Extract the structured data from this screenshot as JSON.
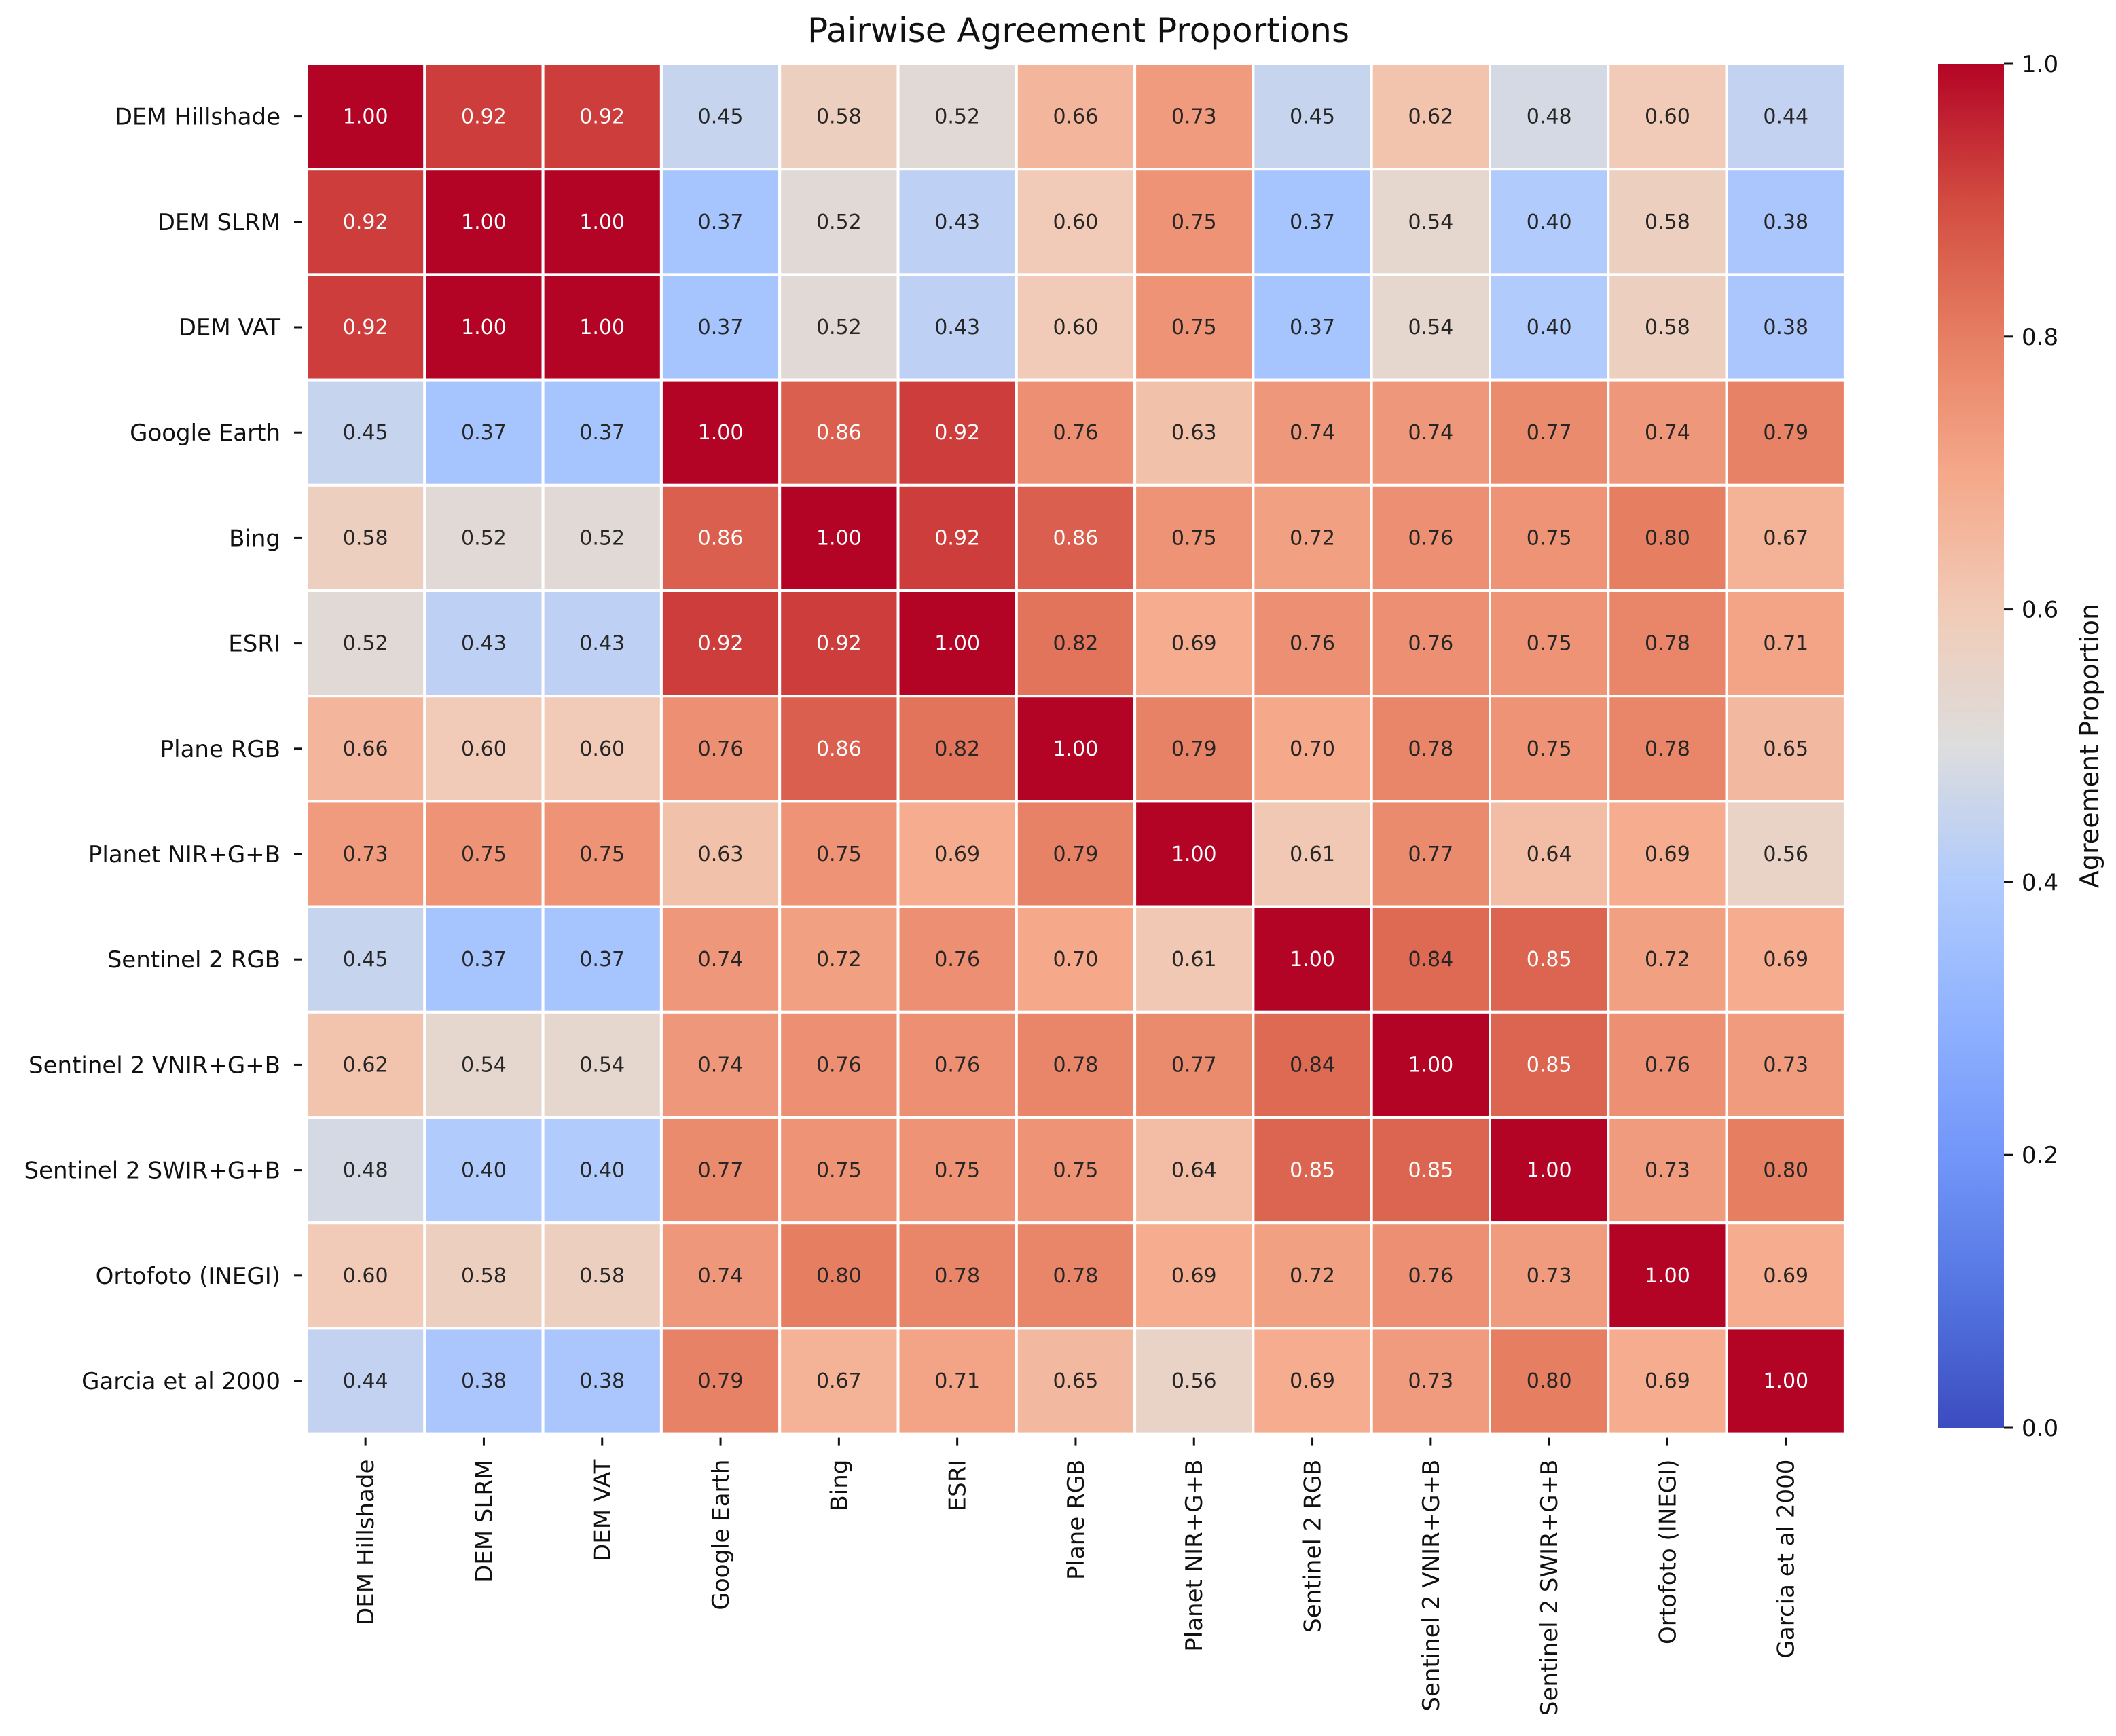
{
  "chart_data": {
    "type": "heatmap",
    "title": "Pairwise Agreement Proportions",
    "labels": [
      "DEM Hillshade",
      "DEM SLRM",
      "DEM VAT",
      "Google Earth",
      "Bing",
      "ESRI",
      "Plane RGB",
      "Planet NIR+G+B",
      "Sentinel 2 RGB",
      "Sentinel 2 VNIR+G+B",
      "Sentinel 2 SWIR+G+B",
      "Ortofoto (INEGI)",
      "Garcia et al 2000"
    ],
    "values": [
      [
        1.0,
        0.92,
        0.92,
        0.45,
        0.58,
        0.52,
        0.66,
        0.73,
        0.45,
        0.62,
        0.48,
        0.6,
        0.44
      ],
      [
        0.92,
        1.0,
        1.0,
        0.37,
        0.52,
        0.43,
        0.6,
        0.75,
        0.37,
        0.54,
        0.4,
        0.58,
        0.38
      ],
      [
        0.92,
        1.0,
        1.0,
        0.37,
        0.52,
        0.43,
        0.6,
        0.75,
        0.37,
        0.54,
        0.4,
        0.58,
        0.38
      ],
      [
        0.45,
        0.37,
        0.37,
        1.0,
        0.86,
        0.92,
        0.76,
        0.63,
        0.74,
        0.74,
        0.77,
        0.74,
        0.79
      ],
      [
        0.58,
        0.52,
        0.52,
        0.86,
        1.0,
        0.92,
        0.86,
        0.75,
        0.72,
        0.76,
        0.75,
        0.8,
        0.67
      ],
      [
        0.52,
        0.43,
        0.43,
        0.92,
        0.92,
        1.0,
        0.82,
        0.69,
        0.76,
        0.76,
        0.75,
        0.78,
        0.71
      ],
      [
        0.66,
        0.6,
        0.6,
        0.76,
        0.86,
        0.82,
        1.0,
        0.79,
        0.7,
        0.78,
        0.75,
        0.78,
        0.65
      ],
      [
        0.73,
        0.75,
        0.75,
        0.63,
        0.75,
        0.69,
        0.79,
        1.0,
        0.61,
        0.77,
        0.64,
        0.69,
        0.56
      ],
      [
        0.45,
        0.37,
        0.37,
        0.74,
        0.72,
        0.76,
        0.7,
        0.61,
        1.0,
        0.84,
        0.85,
        0.72,
        0.69
      ],
      [
        0.62,
        0.54,
        0.54,
        0.74,
        0.76,
        0.76,
        0.78,
        0.77,
        0.84,
        1.0,
        0.85,
        0.76,
        0.73
      ],
      [
        0.48,
        0.4,
        0.4,
        0.77,
        0.75,
        0.75,
        0.75,
        0.64,
        0.85,
        0.85,
        1.0,
        0.73,
        0.8
      ],
      [
        0.6,
        0.58,
        0.58,
        0.74,
        0.8,
        0.78,
        0.78,
        0.69,
        0.72,
        0.76,
        0.73,
        1.0,
        0.69
      ],
      [
        0.44,
        0.38,
        0.38,
        0.79,
        0.67,
        0.71,
        0.65,
        0.56,
        0.69,
        0.73,
        0.8,
        0.69,
        1.0
      ]
    ],
    "colormap": "coolwarm",
    "vmin": 0.0,
    "vmax": 1.0,
    "colorbar": {
      "label": "Agreement Proportion",
      "ticks": [
        0.0,
        0.2,
        0.4,
        0.6,
        0.8,
        1.0
      ],
      "tick_labels": [
        "0.0",
        "0.2",
        "0.4",
        "0.6",
        "0.8",
        "1.0"
      ]
    },
    "annotation_format": "2 decimals",
    "grid_line_color": "#ffffff"
  }
}
